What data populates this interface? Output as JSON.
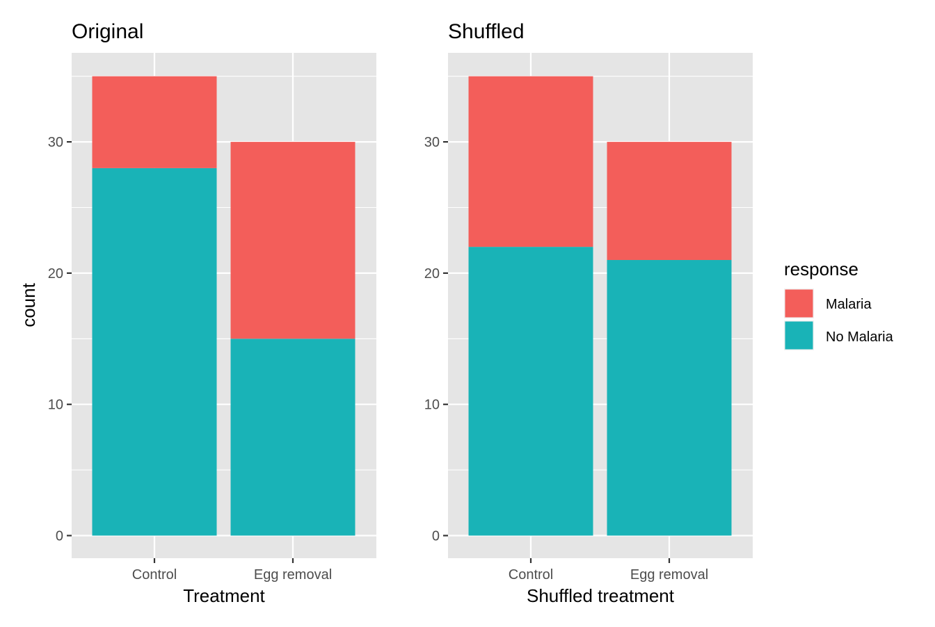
{
  "chart_data": [
    {
      "type": "bar",
      "stacked": true,
      "title": "Original",
      "xlabel": "Treatment",
      "ylabel": "count",
      "categories": [
        "Control",
        "Egg removal"
      ],
      "series": [
        {
          "name": "Malaria",
          "values": [
            7,
            15
          ]
        },
        {
          "name": "No Malaria",
          "values": [
            28,
            15
          ]
        }
      ],
      "ylim": [
        0,
        35
      ],
      "yticks": [
        0,
        10,
        20,
        30
      ],
      "grid": true
    },
    {
      "type": "bar",
      "stacked": true,
      "title": "Shuffled",
      "xlabel": "Shuffled treatment",
      "ylabel": "",
      "categories": [
        "Control",
        "Egg removal"
      ],
      "series": [
        {
          "name": "Malaria",
          "values": [
            13,
            9
          ]
        },
        {
          "name": "No Malaria",
          "values": [
            22,
            21
          ]
        }
      ],
      "ylim": [
        0,
        35
      ],
      "yticks": [
        0,
        10,
        20,
        30
      ],
      "grid": true
    }
  ],
  "legend": {
    "title": "response",
    "placement": "right",
    "items": [
      {
        "label": "Malaria",
        "color": "#F35E5A"
      },
      {
        "label": "No Malaria",
        "color": "#19B3B7"
      }
    ]
  },
  "colors": {
    "Malaria": "#F35E5A",
    "No Malaria": "#19B3B7",
    "panel_background": "#E5E5E5",
    "grid": "#FFFFFF"
  }
}
